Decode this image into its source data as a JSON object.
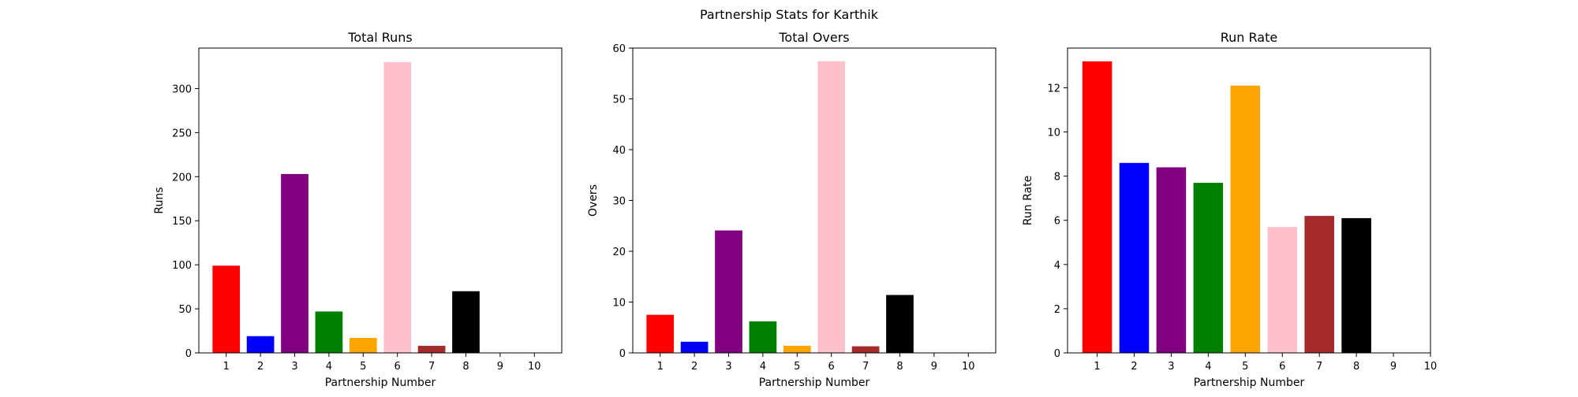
{
  "figure": {
    "suptitle": "Partnership Stats for Karthik"
  },
  "colors": [
    "#ff0000",
    "#0000ff",
    "#800080",
    "#008000",
    "#ffa500",
    "#ffc0cb",
    "#a52a2a",
    "#000000",
    "#000000",
    "#000000"
  ],
  "chart_data": [
    {
      "type": "bar",
      "title": "Total Runs",
      "xlabel": "Partnership Number",
      "ylabel": "Runs",
      "categories": [
        "1",
        "2",
        "3",
        "4",
        "5",
        "6",
        "7",
        "8",
        "9",
        "10"
      ],
      "values": [
        99,
        19,
        203,
        47,
        17,
        330,
        8,
        70,
        0,
        0
      ],
      "ylim": [
        0,
        346
      ],
      "yticks": [
        0,
        50,
        100,
        150,
        200,
        250,
        300
      ],
      "xlim": [
        0.2,
        10.8
      ],
      "xticks": [
        1,
        2,
        3,
        4,
        5,
        6,
        7,
        8,
        9,
        10
      ],
      "grid": false
    },
    {
      "type": "bar",
      "title": "Total Overs",
      "xlabel": "Partnership Number",
      "ylabel": "Overs",
      "categories": [
        "1",
        "2",
        "3",
        "4",
        "5",
        "6",
        "7",
        "8",
        "9",
        "10"
      ],
      "values": [
        7.5,
        2.2,
        24.1,
        6.2,
        1.4,
        57.4,
        1.3,
        11.4,
        0,
        0
      ],
      "ylim": [
        0,
        60
      ],
      "yticks": [
        0,
        10,
        20,
        30,
        40,
        50,
        60
      ],
      "xlim": [
        0.2,
        10.8
      ],
      "xticks": [
        1,
        2,
        3,
        4,
        5,
        6,
        7,
        8,
        9,
        10
      ],
      "grid": false
    },
    {
      "type": "bar",
      "title": "Run Rate",
      "xlabel": "Partnership Number",
      "ylabel": "Run Rate",
      "categories": [
        "1",
        "2",
        "3",
        "4",
        "5",
        "6",
        "7",
        "8"
      ],
      "values": [
        13.2,
        8.6,
        8.4,
        7.7,
        12.1,
        5.7,
        6.2,
        6.1
      ],
      "ylim": [
        0,
        13.8
      ],
      "yticks": [
        0,
        2,
        4,
        6,
        8,
        10,
        12
      ],
      "xlim": [
        0.2,
        10.0
      ],
      "xticks": [
        1,
        2,
        3,
        4,
        5,
        6,
        7,
        8,
        9,
        10
      ],
      "grid": false
    }
  ]
}
